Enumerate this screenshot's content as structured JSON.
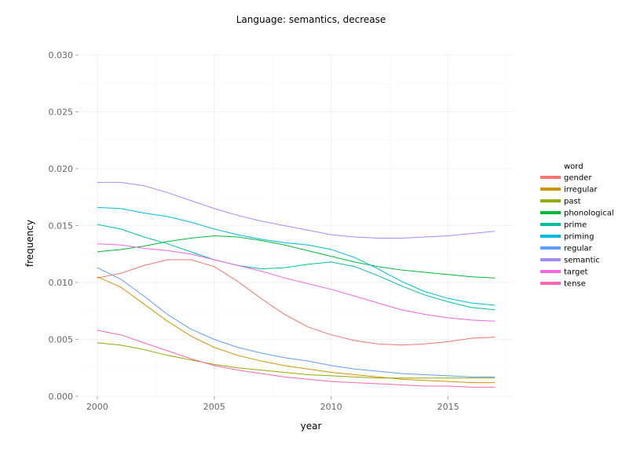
{
  "chart_data": {
    "type": "line",
    "title": "Language: semantics, decrease",
    "xlabel": "year",
    "ylabel": "frequency",
    "xlim": [
      1999.2,
      2017.8
    ],
    "ylim": [
      0.0,
      0.03
    ],
    "x_ticks": [
      2000,
      2005,
      2010,
      2015
    ],
    "y_ticks": [
      0.0,
      0.005,
      0.01,
      0.015,
      0.02,
      0.025,
      0.03
    ],
    "y_tick_labels": [
      "0.000",
      "0.005",
      "0.010",
      "0.015",
      "0.020",
      "0.025",
      "0.030"
    ],
    "grid": true,
    "legend": {
      "title": "word",
      "position": "right"
    },
    "x": [
      2000,
      2001,
      2002,
      2003,
      2004,
      2005,
      2006,
      2007,
      2008,
      2009,
      2010,
      2011,
      2012,
      2013,
      2014,
      2015,
      2016,
      2017
    ],
    "series": [
      {
        "name": "gender",
        "color": "#f8766d",
        "values": [
          0.0104,
          0.0108,
          0.0115,
          0.012,
          0.012,
          0.0114,
          0.0101,
          0.0086,
          0.0072,
          0.0061,
          0.0054,
          0.0049,
          0.0046,
          0.0045,
          0.0046,
          0.0048,
          0.0051,
          0.0052
        ]
      },
      {
        "name": "irregular",
        "color": "#d39200",
        "values": [
          0.0105,
          0.0096,
          0.0081,
          0.0066,
          0.0053,
          0.0043,
          0.0036,
          0.0031,
          0.0027,
          0.0024,
          0.0021,
          0.0019,
          0.0017,
          0.0015,
          0.0014,
          0.0013,
          0.0012,
          0.0012
        ]
      },
      {
        "name": "past",
        "color": "#93aa00",
        "values": [
          0.0047,
          0.0045,
          0.0041,
          0.0036,
          0.0032,
          0.0028,
          0.0025,
          0.0023,
          0.0021,
          0.0019,
          0.0018,
          0.0017,
          0.0016,
          0.0016,
          0.0016,
          0.0016,
          0.0016,
          0.0016
        ]
      },
      {
        "name": "phonological",
        "color": "#00ba38",
        "values": [
          0.0127,
          0.0129,
          0.0132,
          0.0136,
          0.0139,
          0.0141,
          0.014,
          0.0137,
          0.0133,
          0.0128,
          0.0123,
          0.0118,
          0.0114,
          0.0111,
          0.0109,
          0.0107,
          0.0105,
          0.0104
        ]
      },
      {
        "name": "prime",
        "color": "#00c19f",
        "values": [
          0.0151,
          0.0147,
          0.014,
          0.0134,
          0.0127,
          0.012,
          0.0115,
          0.0112,
          0.0113,
          0.0116,
          0.0118,
          0.0114,
          0.0106,
          0.0097,
          0.0089,
          0.0083,
          0.0078,
          0.0076
        ]
      },
      {
        "name": "priming",
        "color": "#00b9e3",
        "values": [
          0.0166,
          0.0165,
          0.0161,
          0.0158,
          0.0153,
          0.0147,
          0.0142,
          0.0138,
          0.0135,
          0.0133,
          0.0129,
          0.0122,
          0.0112,
          0.0101,
          0.0092,
          0.0086,
          0.0082,
          0.008
        ]
      },
      {
        "name": "regular",
        "color": "#619cff",
        "values": [
          0.0113,
          0.0103,
          0.0088,
          0.0072,
          0.0059,
          0.005,
          0.0043,
          0.0038,
          0.0034,
          0.0031,
          0.0027,
          0.0024,
          0.0022,
          0.002,
          0.0019,
          0.0018,
          0.0017,
          0.0017
        ]
      },
      {
        "name": "semantic",
        "color": "#a58aff",
        "values": [
          0.0188,
          0.0188,
          0.0185,
          0.0179,
          0.0172,
          0.0165,
          0.0159,
          0.0154,
          0.015,
          0.0146,
          0.0142,
          0.014,
          0.0139,
          0.0139,
          0.014,
          0.0141,
          0.0143,
          0.0145
        ]
      },
      {
        "name": "target",
        "color": "#f564e3",
        "values": [
          0.0134,
          0.0133,
          0.013,
          0.0128,
          0.0125,
          0.012,
          0.0115,
          0.011,
          0.0104,
          0.0099,
          0.0094,
          0.0088,
          0.0082,
          0.0076,
          0.0072,
          0.0069,
          0.0067,
          0.0066
        ]
      },
      {
        "name": "tense",
        "color": "#ff64b0",
        "values": [
          0.0058,
          0.0054,
          0.0047,
          0.004,
          0.0033,
          0.0027,
          0.0023,
          0.002,
          0.0017,
          0.0015,
          0.0013,
          0.0012,
          0.0011,
          0.001,
          0.0009,
          0.0009,
          0.0008,
          0.0008
        ]
      }
    ]
  }
}
